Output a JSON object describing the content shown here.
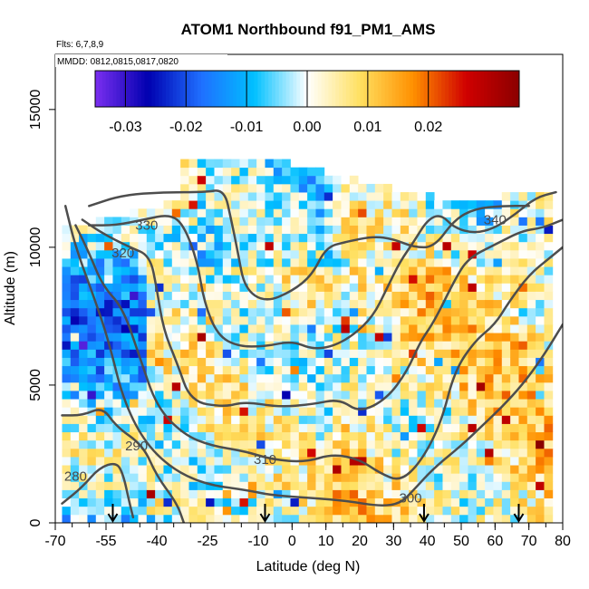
{
  "chart_data": {
    "type": "heatmap",
    "title": "ATOM1 Northbound f91_PM1_AMS",
    "subtitle_lines": [
      "Flts: 6,7,8,9",
      "MMDD: 0812,0815,0817,0820"
    ],
    "xlabel": "Latitude (deg N)",
    "ylabel": "Altitude (m)",
    "xlim": [
      -70,
      80
    ],
    "ylim": [
      0,
      17000
    ],
    "x_ticks": [
      -70,
      -55,
      -40,
      -25,
      -10,
      0,
      10,
      20,
      30,
      40,
      50,
      60,
      70,
      80
    ],
    "x_minor_tick_step": 5,
    "y_ticks": [
      0,
      5000,
      10000,
      15000
    ],
    "colorbar": {
      "range": [
        -0.035,
        0.035
      ],
      "ticks": [
        -0.03,
        -0.02,
        -0.01,
        0.0,
        0.01,
        0.02
      ],
      "tick_labels": [
        "-0.03",
        "-0.02",
        "-0.01",
        "0.00",
        "0.01",
        "0.02"
      ],
      "colors": [
        "#7b2ff0",
        "#0000b0",
        "#1f6fff",
        "#00c0ff",
        "#ffffff",
        "#ffe060",
        "#ff9000",
        "#d00000",
        "#8b0000"
      ]
    },
    "contours": [
      {
        "label": "280",
        "points": [
          [
            -68,
            700
          ],
          [
            -62,
            1300
          ],
          [
            -57,
            2000
          ],
          [
            -52,
            2200
          ],
          [
            -50,
            1800
          ],
          [
            -48,
            700
          ],
          [
            -47,
            200
          ]
        ],
        "label_at": [
          -64,
          1700
        ]
      },
      {
        "label": "290",
        "points": [
          [
            -68,
            3900
          ],
          [
            -62,
            3900
          ],
          [
            -56,
            4200
          ],
          [
            -52,
            3500
          ],
          [
            -44,
            2800
          ],
          [
            -40,
            1700
          ],
          [
            -34,
            700
          ],
          [
            -32,
            0
          ]
        ],
        "label_at": [
          -46,
          2800
        ]
      },
      {
        "label": "300",
        "points": [
          [
            -67,
            11500
          ],
          [
            -64,
            10000
          ],
          [
            -58,
            8000
          ],
          [
            -54,
            6500
          ],
          [
            -50,
            4500
          ],
          [
            -44,
            3000
          ],
          [
            -36,
            2000
          ],
          [
            -26,
            1400
          ],
          [
            -14,
            1200
          ],
          [
            -6,
            1000
          ],
          [
            6,
            900
          ],
          [
            16,
            800
          ],
          [
            26,
            600
          ],
          [
            32,
            700
          ],
          [
            36,
            1200
          ],
          [
            42,
            2000
          ],
          [
            50,
            2800
          ],
          [
            56,
            3500
          ],
          [
            62,
            4200
          ],
          [
            68,
            5000
          ],
          [
            74,
            6000
          ],
          [
            80,
            7200
          ]
        ],
        "label_at": [
          35,
          900
        ]
      },
      {
        "label": "310",
        "points": [
          [
            -64,
            10800
          ],
          [
            -60,
            9800
          ],
          [
            -56,
            8600
          ],
          [
            -50,
            7800
          ],
          [
            -45,
            6000
          ],
          [
            -40,
            4200
          ],
          [
            -32,
            3200
          ],
          [
            -24,
            2800
          ],
          [
            -14,
            2600
          ],
          [
            -6,
            2300
          ],
          [
            4,
            2200
          ],
          [
            12,
            2500
          ],
          [
            20,
            2300
          ],
          [
            26,
            1800
          ],
          [
            32,
            1500
          ],
          [
            38,
            2200
          ],
          [
            44,
            3600
          ],
          [
            48,
            5500
          ],
          [
            54,
            6600
          ],
          [
            60,
            7200
          ],
          [
            64,
            8000
          ],
          [
            70,
            9000
          ],
          [
            76,
            9600
          ],
          [
            80,
            10000
          ]
        ],
        "label_at": [
          -8,
          2300
        ]
      },
      {
        "label": "320",
        "points": [
          [
            -62,
            11000
          ],
          [
            -56,
            10500
          ],
          [
            -48,
            10000
          ],
          [
            -42,
            9700
          ],
          [
            -40,
            8500
          ],
          [
            -38,
            7000
          ],
          [
            -34,
            5800
          ],
          [
            -30,
            4400
          ],
          [
            -20,
            4200
          ],
          [
            -14,
            4400
          ],
          [
            -4,
            4200
          ],
          [
            6,
            4300
          ],
          [
            14,
            4500
          ],
          [
            20,
            4000
          ],
          [
            28,
            4500
          ],
          [
            34,
            5500
          ],
          [
            38,
            6600
          ],
          [
            42,
            7300
          ],
          [
            48,
            8800
          ],
          [
            52,
            9600
          ],
          [
            60,
            10100
          ],
          [
            68,
            10600
          ],
          [
            74,
            10700
          ],
          [
            80,
            11000
          ]
        ],
        "label_at": [
          -50,
          9800
        ]
      },
      {
        "label": "330",
        "points": [
          [
            -60,
            10800
          ],
          [
            -52,
            10800
          ],
          [
            -44,
            11000
          ],
          [
            -36,
            11200
          ],
          [
            -32,
            10800
          ],
          [
            -28,
            9500
          ],
          [
            -26,
            8000
          ],
          [
            -22,
            6800
          ],
          [
            -16,
            6400
          ],
          [
            -8,
            6400
          ],
          [
            0,
            6600
          ],
          [
            6,
            6300
          ],
          [
            12,
            6400
          ],
          [
            18,
            6800
          ],
          [
            24,
            7500
          ],
          [
            28,
            8500
          ],
          [
            32,
            9500
          ],
          [
            36,
            10200
          ],
          [
            40,
            11000
          ],
          [
            44,
            11200
          ],
          [
            48,
            10700
          ],
          [
            54,
            10500
          ],
          [
            60,
            10700
          ],
          [
            66,
            11200
          ],
          [
            72,
            11800
          ],
          [
            78,
            12000
          ]
        ],
        "label_at": [
          -43,
          10800
        ]
      },
      {
        "label": "340",
        "points": [
          [
            -60,
            11500
          ],
          [
            -50,
            11900
          ],
          [
            -38,
            12000
          ],
          [
            -26,
            12000
          ],
          [
            -20,
            12100
          ],
          [
            -18,
            11000
          ],
          [
            -16,
            9800
          ],
          [
            -14,
            8500
          ],
          [
            -8,
            8000
          ],
          [
            0,
            8400
          ],
          [
            6,
            9000
          ],
          [
            10,
            10000
          ],
          [
            16,
            10200
          ],
          [
            24,
            10400
          ],
          [
            30,
            10300
          ],
          [
            36,
            10000
          ],
          [
            42,
            10000
          ],
          [
            48,
            11000
          ],
          [
            54,
            11400
          ],
          [
            62,
            11500
          ],
          [
            70,
            11500
          ]
        ],
        "label_at": [
          60,
          11000
        ]
      }
    ],
    "flight_markers_x": [
      -53,
      -8,
      39,
      67
    ]
  }
}
